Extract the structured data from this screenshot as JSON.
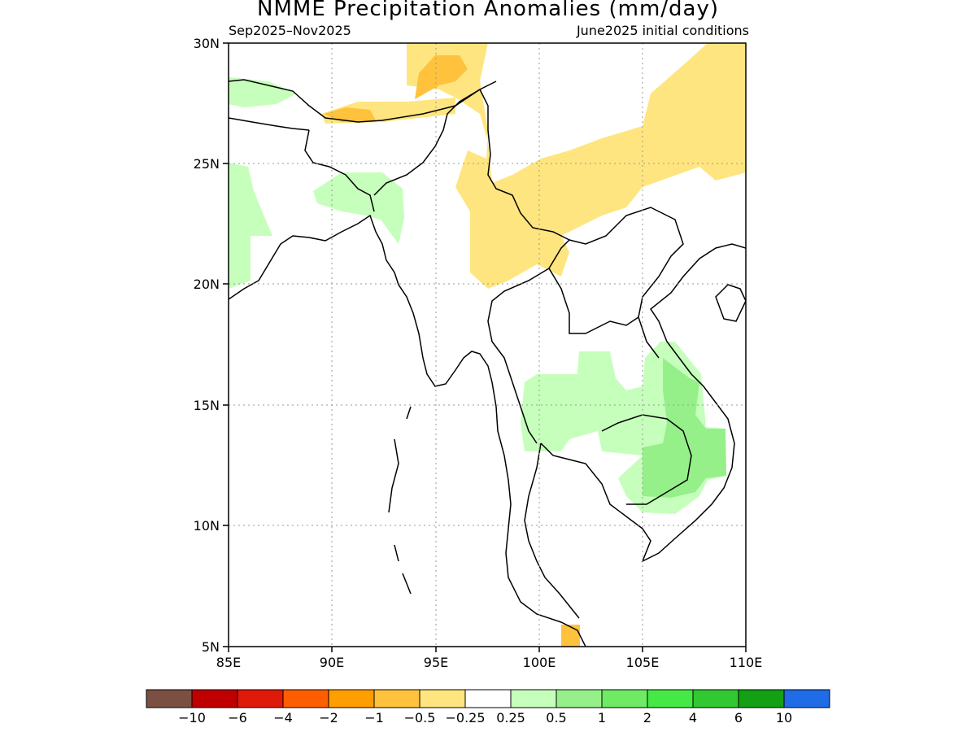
{
  "title": "NMME Precipitation Anomalies (mm/day)",
  "period": "Sep2025–Nov2025",
  "initial_conditions": "June2025 initial conditions",
  "lat_labels": [
    "30N",
    "25N",
    "20N",
    "15N",
    "10N",
    "5N"
  ],
  "lon_labels": [
    "85E",
    "90E",
    "95E",
    "100E",
    "105E",
    "110E"
  ],
  "colorbar": {
    "colors": [
      "#7b5043",
      "#c00000",
      "#e01a0a",
      "#ff5e00",
      "#ff9e00",
      "#ffc23c",
      "#ffe57f",
      "#ffffff",
      "#c6ffbc",
      "#96f08a",
      "#6eea64",
      "#46e846",
      "#32c832",
      "#14a014",
      "#1f6ce6"
    ],
    "labels": [
      "−10",
      "−6",
      "−4",
      "−2",
      "−1",
      "−0.5",
      "−0.25",
      "0.25",
      "0.5",
      "1",
      "2",
      "4",
      "6",
      "10"
    ]
  }
}
